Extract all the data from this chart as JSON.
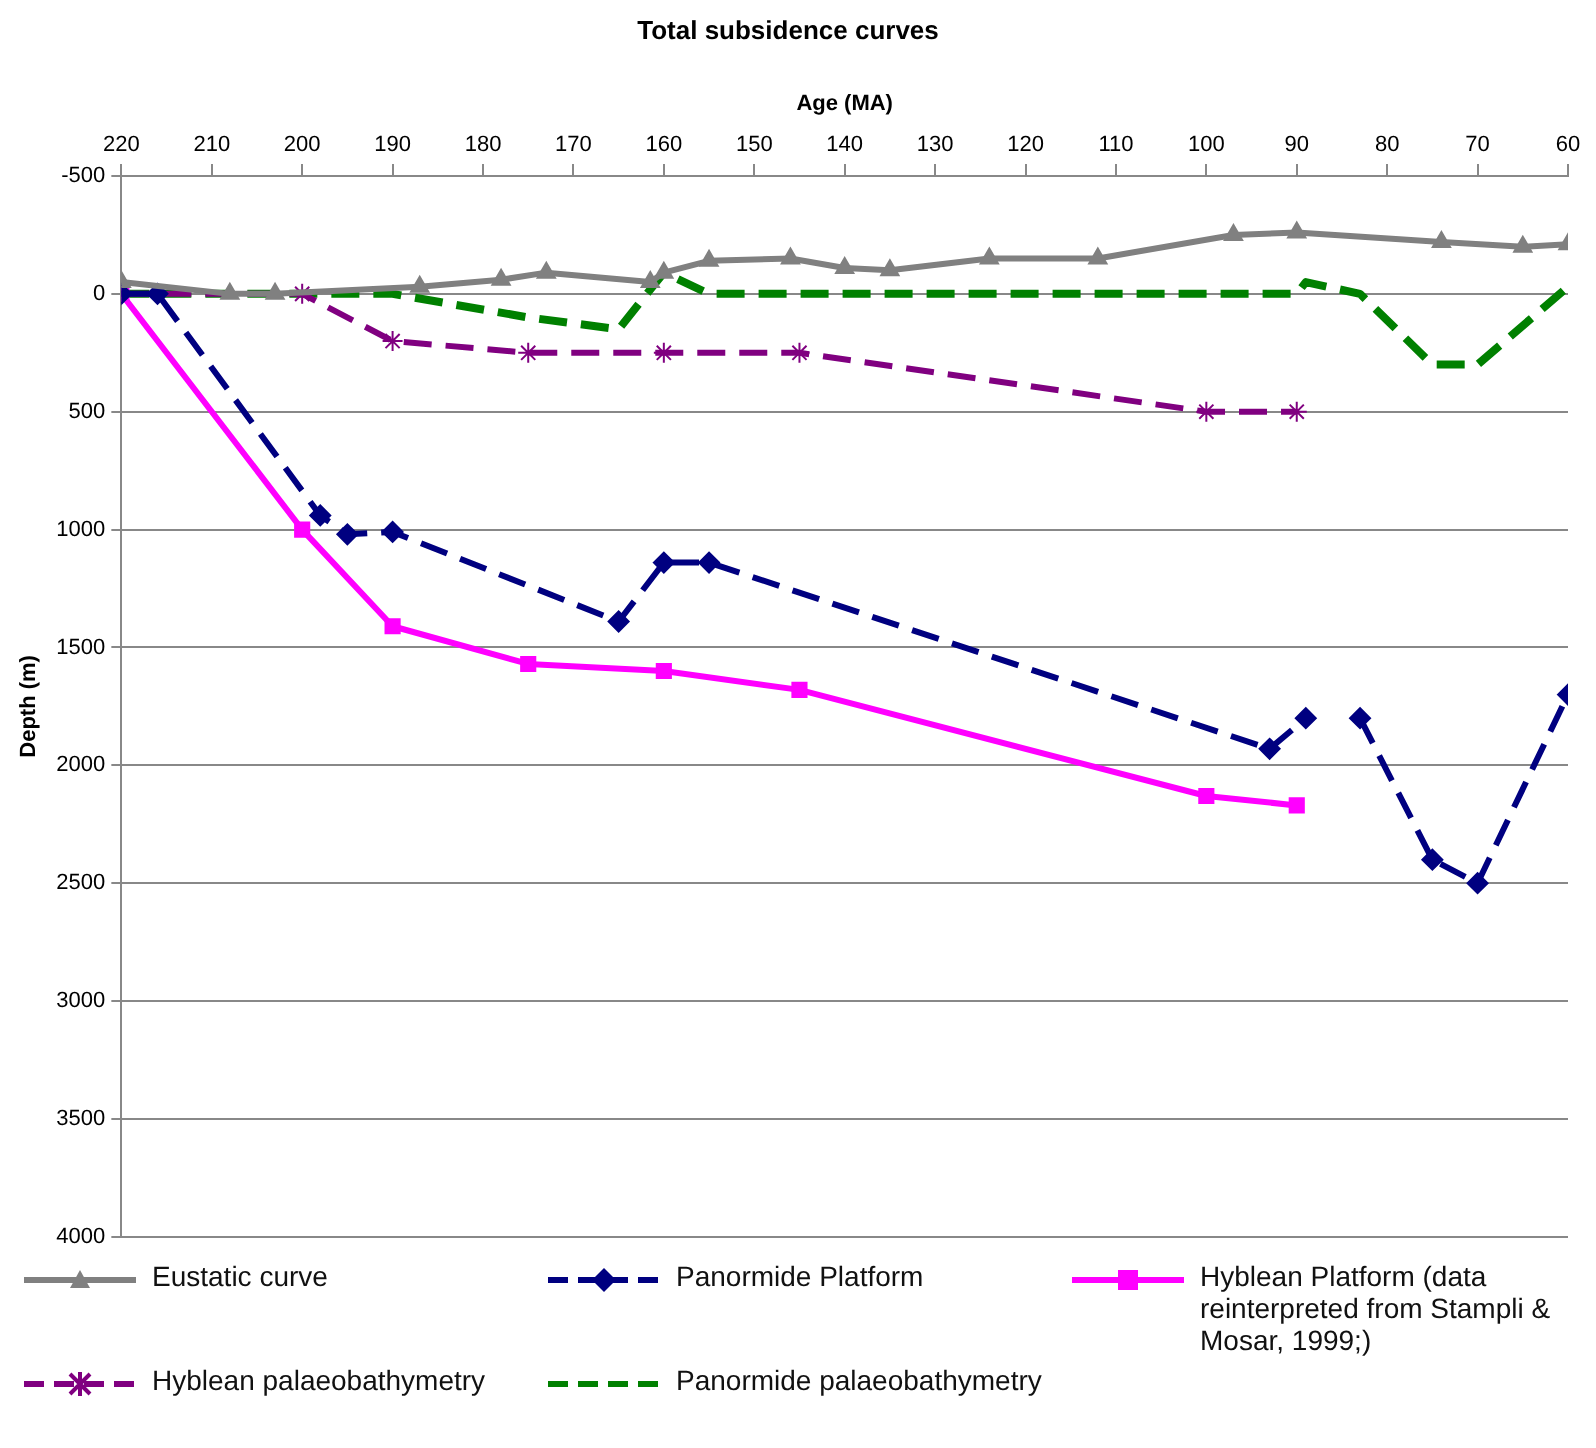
{
  "chart_data": {
    "type": "line",
    "title": "Total subsidence curves",
    "xlabel": "Age (MA)",
    "ylabel": "Depth (m)",
    "xlim": [
      220,
      60
    ],
    "xticks": [
      220,
      210,
      200,
      190,
      180,
      170,
      160,
      150,
      140,
      130,
      120,
      110,
      100,
      90,
      80,
      70,
      60
    ],
    "ylim": [
      4000,
      -500
    ],
    "yticks": [
      -500,
      0,
      500,
      1000,
      1500,
      2000,
      2500,
      3000,
      3500,
      4000
    ],
    "grid": "y",
    "legend": "bottom",
    "series": [
      {
        "name": "Eustatic curve",
        "color": "#808080",
        "marker": "triangle",
        "line_style": "solid",
        "x": [
          220,
          208,
          203,
          187,
          178,
          173,
          161.5,
          160,
          155,
          146,
          140,
          135,
          124,
          112,
          97,
          90,
          74,
          65,
          60
        ],
        "values": [
          -50,
          0,
          0,
          -30,
          -60,
          -90,
          -50,
          -90,
          -140,
          -150,
          -110,
          -100,
          -150,
          -150,
          -250,
          -260,
          -220,
          -200,
          -210
        ]
      },
      {
        "name": "Panormide Platform",
        "color": "#000080",
        "marker": "diamond",
        "line_style": "dashed",
        "x": [
          220,
          216,
          198,
          195,
          190,
          165,
          160,
          155,
          93,
          89,
          86,
          83,
          75,
          70,
          60
        ],
        "values": [
          0,
          0,
          940,
          1020,
          1010,
          1390,
          1140,
          1140,
          1930,
          1800,
          null,
          1800,
          2400,
          2500,
          1700
        ]
      },
      {
        "name": "Hyblean Platform (data reinterpreted from Stampli & Mosar, 1999;)",
        "color": "#ff00ff",
        "marker": "square",
        "line_style": "solid",
        "x": [
          220,
          200,
          190,
          175,
          160,
          145,
          100,
          90
        ],
        "values": [
          0,
          1000,
          1410,
          1570,
          1600,
          1680,
          2130,
          2170
        ]
      },
      {
        "name": "Hyblean palaeobathymetry",
        "color": "#800080",
        "marker": "cross",
        "line_style": "dashed",
        "x": [
          220,
          200,
          190,
          175,
          160,
          145,
          100,
          90
        ],
        "values": [
          0,
          0,
          200,
          250,
          250,
          250,
          500,
          500
        ]
      },
      {
        "name": "Panormide palaeobathymetry",
        "color": "#008000",
        "marker": "none",
        "line_style": "dashed",
        "x": [
          220,
          190,
          175,
          165,
          160,
          155,
          90,
          89,
          83,
          75,
          70,
          60
        ],
        "values": [
          0,
          0,
          100,
          150,
          -90,
          0,
          0,
          -50,
          0,
          300,
          300,
          -30
        ]
      }
    ]
  }
}
